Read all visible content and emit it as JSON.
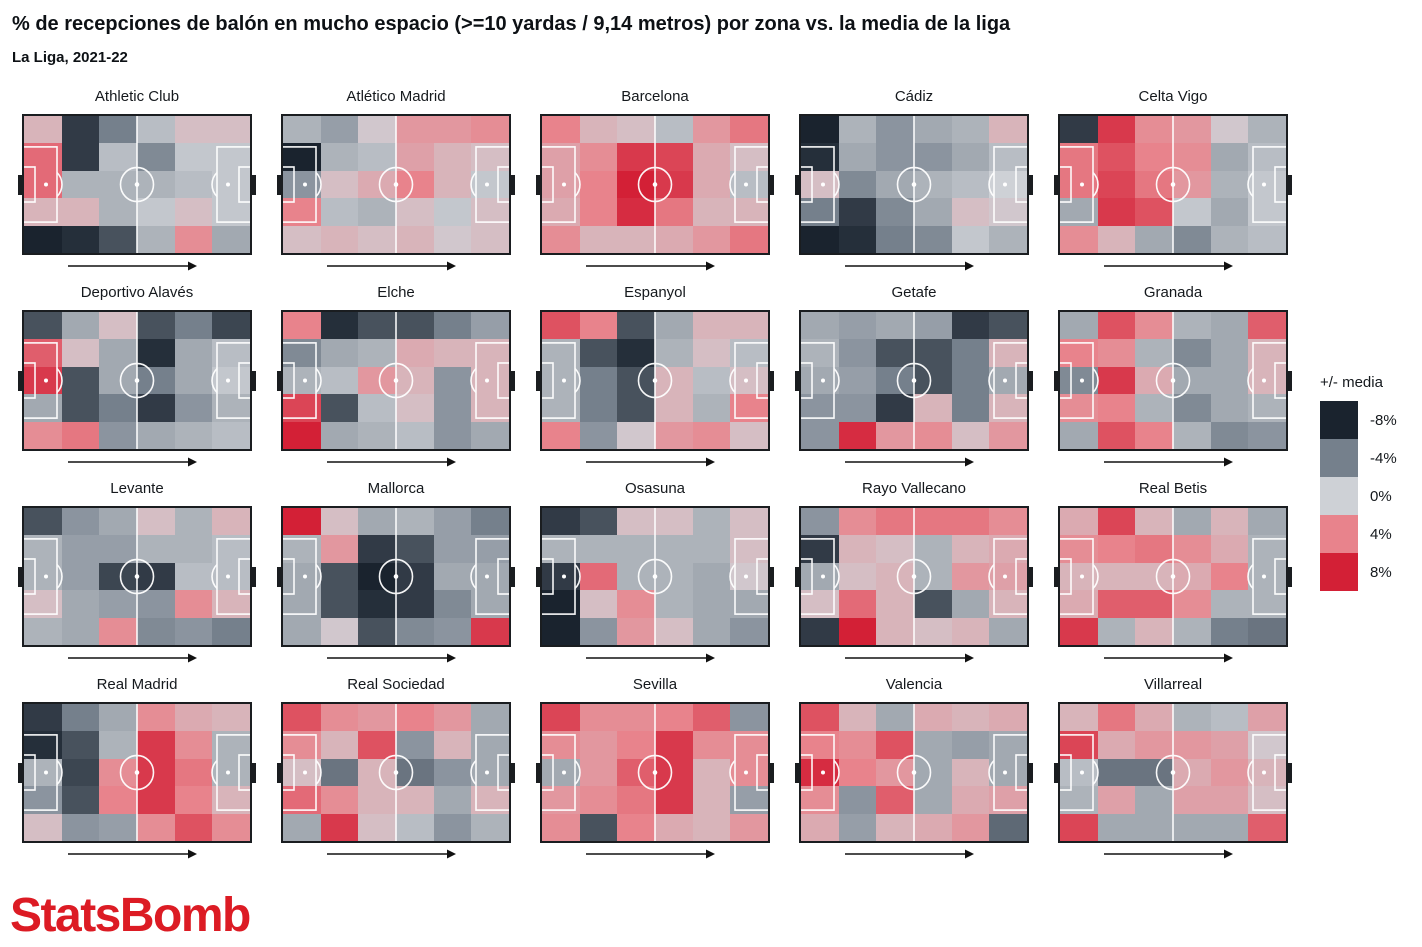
{
  "header": {
    "title": "% de recepciones de balón en mucho espacio (>=10 yardas / 9,14 metros) por zona vs. la media de la liga",
    "subtitle": "La Liga, 2021-22"
  },
  "legend": {
    "title": "+/- media",
    "entries": [
      {
        "label": "-8%",
        "value": -8
      },
      {
        "label": "-4%",
        "value": -4
      },
      {
        "label": "0%",
        "value": 0
      },
      {
        "label": "4%",
        "value": 4
      },
      {
        "label": "8%",
        "value": 8
      }
    ]
  },
  "chart_data": {
    "type": "heatmap",
    "subtype": "small-multiples-pitch-grid",
    "value_unit": "percent vs league average",
    "value_range": [
      -8,
      8
    ],
    "grid": {
      "cols": 6,
      "rows": 5
    },
    "attack_direction": "left-to-right",
    "color_scale": {
      "anchors": [
        {
          "value": -8,
          "color": "#1a232e"
        },
        {
          "value": -4,
          "color": "#75808c"
        },
        {
          "value": 0,
          "color": "#ced1d6"
        },
        {
          "value": 4,
          "color": "#e8838c"
        },
        {
          "value": 8,
          "color": "#d32036"
        }
      ]
    },
    "teams": [
      {
        "name": "Athletic Club",
        "values": [
          [
            1.5,
            -7,
            -4,
            -1,
            1,
            1
          ],
          [
            5,
            -7,
            -1,
            -3.5,
            -0.5,
            -0.5
          ],
          [
            5,
            -1.5,
            -1.5,
            -1.5,
            -1,
            -0.5
          ],
          [
            1.5,
            1.5,
            -1.5,
            -0.5,
            1,
            -0.5
          ],
          [
            -8,
            -7.5,
            -6,
            -1.5,
            3.5,
            -2
          ]
        ]
      },
      {
        "name": "Atlético Madrid",
        "values": [
          [
            -1.5,
            -2.5,
            0.5,
            3,
            3,
            3.5
          ],
          [
            -8,
            -1.5,
            -1,
            2.5,
            1.5,
            1
          ],
          [
            -3,
            1,
            2,
            4,
            1.5,
            -0.5
          ],
          [
            4,
            -1,
            -1.5,
            1,
            -0.5,
            1
          ],
          [
            1,
            1.5,
            1,
            1.5,
            0.5,
            1
          ]
        ]
      },
      {
        "name": "Barcelona",
        "values": [
          [
            4,
            1.5,
            1,
            -1,
            3,
            4.5
          ],
          [
            2.5,
            3.5,
            7,
            6.5,
            2,
            1
          ],
          [
            2.5,
            4,
            8,
            7,
            2,
            -1
          ],
          [
            2,
            4,
            7.5,
            4.5,
            1.5,
            1.5
          ],
          [
            3.5,
            1.5,
            1.5,
            2,
            3,
            4.5
          ]
        ]
      },
      {
        "name": "Cádiz",
        "values": [
          [
            -8,
            -1.5,
            -3,
            -2,
            -1.5,
            1.5
          ],
          [
            -7.5,
            -2,
            -3,
            -3,
            -2,
            -1
          ],
          [
            1,
            -3.5,
            -2,
            -1.5,
            -1,
            0
          ],
          [
            -4,
            -7,
            -3.5,
            -2,
            1,
            0.5
          ],
          [
            -8,
            -7.5,
            -4,
            -3.5,
            -0.5,
            -1.5
          ]
        ]
      },
      {
        "name": "Celta Vigo",
        "values": [
          [
            -7,
            7,
            3.5,
            3,
            0.5,
            -1.5
          ],
          [
            4.5,
            6,
            4,
            3.5,
            -2,
            -1
          ],
          [
            4.5,
            6.5,
            4.5,
            3,
            -1.5,
            -0.5
          ],
          [
            -2,
            7,
            6,
            -0.5,
            -2,
            -0.5
          ],
          [
            3.5,
            1.5,
            -2,
            -3.5,
            -1.5,
            -1
          ]
        ]
      },
      {
        "name": "Deportivo Alavés",
        "values": [
          [
            -6,
            -2,
            1,
            -6,
            -4,
            -6.5
          ],
          [
            5.5,
            1,
            -2,
            -7.5,
            -2,
            -1
          ],
          [
            7,
            -6,
            -2,
            -4,
            -2,
            -0.5
          ],
          [
            -2,
            -6,
            -4,
            -7,
            -3,
            -1.5
          ],
          [
            3.5,
            4.5,
            -3,
            -2,
            -1.5,
            -1
          ]
        ]
      },
      {
        "name": "Elche",
        "values": [
          [
            4,
            -7.5,
            -6,
            -6,
            -4,
            -2.5
          ],
          [
            -3.5,
            -2,
            -1.5,
            2,
            1.5,
            1.5
          ],
          [
            -1.5,
            -1,
            3,
            1.5,
            -3,
            1.5
          ],
          [
            6.5,
            -6,
            -1,
            1,
            -3,
            1.5
          ],
          [
            8,
            -2,
            -1.5,
            -1,
            -3,
            -2
          ]
        ]
      },
      {
        "name": "Espanyol",
        "values": [
          [
            6,
            4,
            -6,
            -2,
            1.5,
            1.5
          ],
          [
            -1.5,
            -6,
            -7.5,
            -1.5,
            1,
            -1
          ],
          [
            -1.5,
            -4,
            -6,
            1.5,
            -1,
            1
          ],
          [
            -1.5,
            -4,
            -6,
            1.5,
            -1.5,
            4
          ],
          [
            4,
            -3,
            0.5,
            3,
            3.5,
            1
          ]
        ]
      },
      {
        "name": "Getafe",
        "values": [
          [
            -2,
            -2.5,
            -2,
            -2.5,
            -7,
            -6
          ],
          [
            -1.5,
            -3,
            -6,
            -6,
            -4,
            1.5
          ],
          [
            -2,
            -2.5,
            -4,
            -6,
            -4,
            -2
          ],
          [
            -3,
            -3,
            -7,
            1.5,
            -4,
            1.5
          ],
          [
            -3,
            7.5,
            3,
            3.5,
            1,
            3
          ]
        ]
      },
      {
        "name": "Granada",
        "values": [
          [
            -2,
            6,
            3.5,
            -1.5,
            -2,
            5.5
          ],
          [
            4,
            3.5,
            -1.5,
            -3.5,
            -2,
            1.5
          ],
          [
            -3.5,
            7,
            2,
            -2,
            -2,
            1.5
          ],
          [
            3.5,
            4,
            -1.5,
            -3.5,
            -2,
            -1.5
          ],
          [
            -2,
            6,
            4,
            -1.5,
            -3.5,
            -3
          ]
        ]
      },
      {
        "name": "Levante",
        "values": [
          [
            -6,
            -3,
            -2,
            1,
            -1.5,
            1.5
          ],
          [
            -1.5,
            -2.5,
            -2.5,
            -1.5,
            -1.5,
            -1
          ],
          [
            -1.5,
            -2.5,
            -6.5,
            -7,
            -1,
            -1
          ],
          [
            1,
            -2,
            -2.5,
            -3,
            3.5,
            1.5
          ],
          [
            -1.5,
            -2,
            3.5,
            -3.5,
            -3,
            -4
          ]
        ]
      },
      {
        "name": "Mallorca",
        "values": [
          [
            8,
            1,
            -2,
            -1.5,
            -2.5,
            -4
          ],
          [
            -1.5,
            3,
            -7,
            -6,
            -2.5,
            -2.5
          ],
          [
            -2,
            -6,
            -8,
            -7,
            -2,
            -2
          ],
          [
            -2,
            -6,
            -7.5,
            -7,
            -3.5,
            -2
          ],
          [
            -2,
            0.5,
            -6,
            -3.5,
            -3,
            7
          ]
        ]
      },
      {
        "name": "Osasuna",
        "values": [
          [
            -7,
            -6,
            1,
            1,
            -1.5,
            1
          ],
          [
            -1.5,
            -1.5,
            -1.5,
            -1.5,
            -1.5,
            1
          ],
          [
            -7,
            5,
            -1.5,
            -1.5,
            -2,
            0.5
          ],
          [
            -8,
            1,
            3.5,
            -1.5,
            -2,
            -2
          ],
          [
            -8,
            -3,
            3,
            1,
            -2,
            -3
          ]
        ]
      },
      {
        "name": "Rayo Vallecano",
        "values": [
          [
            -3,
            3.5,
            4.5,
            4.5,
            4.5,
            3.5
          ],
          [
            -7,
            1.5,
            1,
            -1.5,
            1.5,
            2
          ],
          [
            -2,
            1,
            1.5,
            -1.5,
            3,
            2.5
          ],
          [
            1,
            5,
            1.5,
            -6,
            -2,
            1.5
          ],
          [
            -7,
            8,
            1.5,
            1,
            1.5,
            -2
          ]
        ]
      },
      {
        "name": "Real Betis",
        "values": [
          [
            2,
            6.5,
            1.5,
            -2,
            1.5,
            -2
          ],
          [
            3.5,
            4,
            4.5,
            3.5,
            2,
            -1.5
          ],
          [
            1.5,
            1.5,
            1.5,
            2,
            4,
            -1.5
          ],
          [
            2,
            5.5,
            5.5,
            3.5,
            -1.5,
            -1.5
          ],
          [
            7,
            -1.5,
            1.5,
            -1.5,
            -4,
            -4.5
          ]
        ]
      },
      {
        "name": "Real Madrid",
        "values": [
          [
            -7,
            -4,
            -2,
            3.5,
            2,
            1.5
          ],
          [
            -7.5,
            -6,
            -1.5,
            7,
            3.5,
            -1.5
          ],
          [
            -1.5,
            -6.5,
            3.5,
            7,
            4.5,
            -1.5
          ],
          [
            -3,
            -6,
            4,
            7,
            4,
            1.5
          ],
          [
            1,
            -3,
            -2.5,
            3.5,
            6,
            3.5
          ]
        ]
      },
      {
        "name": "Real Sociedad",
        "values": [
          [
            6,
            3.5,
            3,
            4,
            3,
            -2
          ],
          [
            3.5,
            1.5,
            6,
            -3,
            1.5,
            -2
          ],
          [
            1,
            -4.5,
            1.5,
            -4.5,
            -3,
            -2
          ],
          [
            5,
            3.5,
            1.5,
            1.5,
            -2,
            1.5
          ],
          [
            -2,
            7,
            1,
            -1,
            -3,
            -1.5
          ]
        ]
      },
      {
        "name": "Sevilla",
        "values": [
          [
            6.5,
            3.5,
            3.5,
            4,
            5.5,
            -3
          ],
          [
            3.5,
            3,
            4,
            7,
            3.5,
            3.5
          ],
          [
            -2,
            3,
            5.5,
            7,
            1.5,
            3.5
          ],
          [
            3,
            3.5,
            4.5,
            7,
            1.5,
            -2.5
          ],
          [
            3.5,
            -6,
            4,
            2,
            1.5,
            3
          ]
        ]
      },
      {
        "name": "Valencia",
        "values": [
          [
            6,
            1.5,
            -2,
            2,
            1.5,
            2
          ],
          [
            4,
            3.5,
            6,
            -2,
            -2.5,
            -2
          ],
          [
            7.5,
            4,
            3,
            -2,
            1.5,
            -2
          ],
          [
            3.5,
            -3,
            5.5,
            -2,
            2,
            2.5
          ],
          [
            2,
            -2.5,
            1.5,
            2,
            3,
            -5
          ]
        ]
      },
      {
        "name": "Villarreal",
        "values": [
          [
            1.5,
            4.5,
            2,
            -1.5,
            -1,
            2.5
          ],
          [
            6.5,
            2,
            3,
            3,
            2.5,
            0.5
          ],
          [
            -1,
            -4.5,
            -4.5,
            2,
            3,
            1.5
          ],
          [
            -1.5,
            2.5,
            -2,
            2.5,
            2.5,
            1
          ],
          [
            6.5,
            -2,
            -2,
            -2,
            -2,
            5.5
          ]
        ]
      }
    ]
  },
  "footer": {
    "logo_text": "StatsBomb",
    "logo_color": "#dc1b24"
  }
}
